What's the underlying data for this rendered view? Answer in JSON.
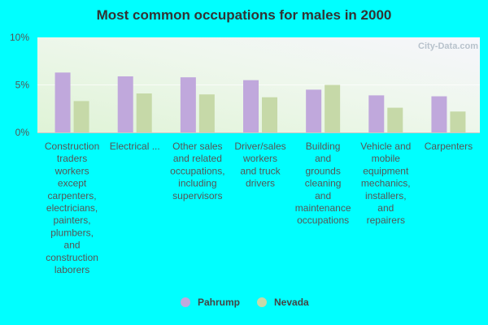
{
  "watermark": "City-Data.com",
  "colors": {
    "background": "#00ffff",
    "series": [
      "#c0a8dc",
      "#c6d9a8"
    ]
  },
  "chart_data": {
    "type": "bar",
    "title": "Most common occupations for males in 2000",
    "xlabel": "",
    "ylabel": "",
    "ylim": [
      0,
      10
    ],
    "yticks": [
      "0%",
      "5%",
      "10%"
    ],
    "grid": false,
    "legend_position": "bottom",
    "categories": [
      [
        "Construction",
        "traders",
        "workers",
        "except",
        "carpenters,",
        "electricians,",
        "painters,",
        "plumbers,",
        "and",
        "construction",
        "laborers"
      ],
      [
        "Electrical ..."
      ],
      [
        "Other sales",
        "and related",
        "occupations,",
        "including",
        "supervisors"
      ],
      [
        "Driver/sales",
        "workers",
        "and truck",
        "drivers"
      ],
      [
        "Building",
        "and",
        "grounds",
        "cleaning",
        "and",
        "maintenance",
        "occupations"
      ],
      [
        "Vehicle and",
        "mobile",
        "equipment",
        "mechanics,",
        "installers,",
        "and",
        "repairers"
      ],
      [
        "Carpenters"
      ]
    ],
    "series": [
      {
        "name": "Pahrump",
        "values": [
          6.3,
          5.9,
          5.8,
          5.5,
          4.5,
          3.9,
          3.8
        ]
      },
      {
        "name": "Nevada",
        "values": [
          3.3,
          4.1,
          4.0,
          3.7,
          5.0,
          2.6,
          2.2
        ]
      }
    ]
  }
}
